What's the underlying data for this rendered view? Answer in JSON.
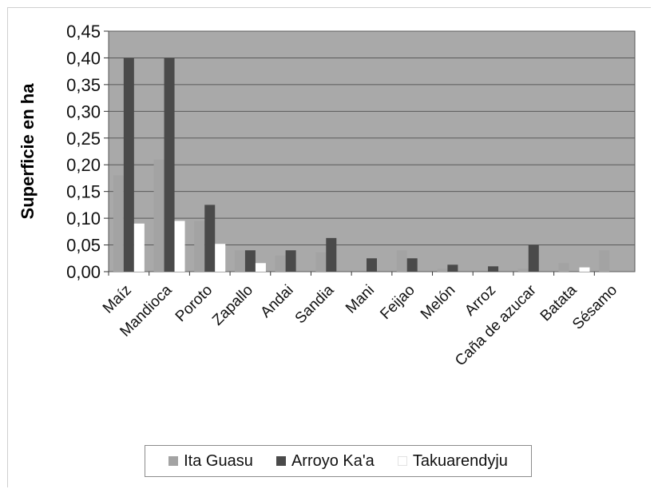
{
  "chart_data": {
    "type": "bar",
    "title": "",
    "xlabel": "",
    "ylabel": "Superficie en ha",
    "ylim": [
      0,
      0.45
    ],
    "yticks": [
      "0,00",
      "0,05",
      "0,10",
      "0,15",
      "0,20",
      "0,25",
      "0,30",
      "0,35",
      "0,40",
      "0,45"
    ],
    "categories": [
      "Maíz",
      "Mandioca",
      "Poroto",
      "Zapallo",
      "Andai",
      "Sandia",
      "Mani",
      "Feijao",
      "Melón",
      "Arroz",
      "Caña de azucar",
      "Batata",
      "Sésamo"
    ],
    "series": [
      {
        "name": "Ita Guasu",
        "color": "#a3a3a3",
        "values": [
          0.18,
          0.21,
          0.095,
          0.04,
          0.03,
          0.036,
          0,
          0.04,
          0.005,
          0,
          0.005,
          0.016,
          0.04
        ]
      },
      {
        "name": "Arroyo Ka'a",
        "color": "#4a4a4a",
        "values": [
          0.4,
          0.4,
          0.125,
          0.04,
          0.04,
          0.063,
          0.025,
          0.025,
          0.013,
          0.01,
          0.05,
          0,
          0
        ]
      },
      {
        "name": "Takuarendyju",
        "color": "#ffffff",
        "values": [
          0.09,
          0.095,
          0.052,
          0.016,
          0,
          0,
          0,
          0,
          0,
          0,
          0,
          0.008,
          0
        ]
      }
    ],
    "plot_background": "#a9a9a9",
    "grid": true,
    "legend_position": "bottom"
  }
}
